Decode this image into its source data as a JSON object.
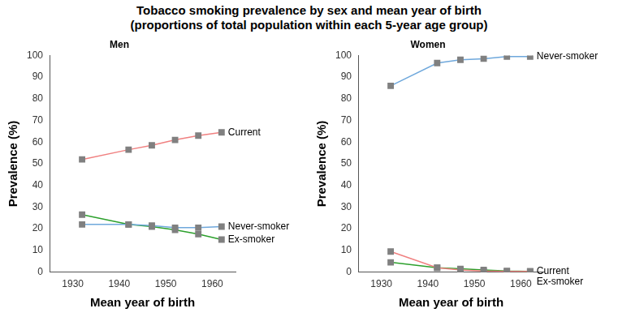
{
  "title": "Tobacco smoking prevalence by sex and mean year of birth",
  "subtitle": "(proportions of total population within each 5-year age group)",
  "chart_data": [
    {
      "type": "line",
      "title": "Men",
      "x_label": "Mean year of birth",
      "y_label": "Prevalence (%)",
      "x": [
        1932,
        1942,
        1947,
        1952,
        1957,
        1962
      ],
      "xlim": [
        1925,
        1965
      ],
      "xticks": [
        1930,
        1940,
        1950,
        1960
      ],
      "ylim": [
        0,
        100
      ],
      "yticks": [
        0,
        10,
        20,
        30,
        40,
        50,
        60,
        70,
        80,
        90,
        100
      ],
      "grid": false,
      "series": [
        {
          "name": "Current",
          "color": "#f08080",
          "marker": "square",
          "values": [
            52,
            56.5,
            58.5,
            61,
            63,
            64.5
          ]
        },
        {
          "name": "Never-smoker",
          "color": "#6fa8dc",
          "marker": "square",
          "values": [
            22,
            22,
            21.5,
            20.5,
            20.5,
            21
          ]
        },
        {
          "name": "Ex-smoker",
          "color": "#2ca02c",
          "marker": "square",
          "values": [
            26.5,
            22,
            21,
            19.5,
            17.5,
            15
          ]
        }
      ]
    },
    {
      "type": "line",
      "title": "Women",
      "x_label": "Mean year of birth",
      "y_label": "Prevalence (%)",
      "x": [
        1932,
        1942,
        1947,
        1952,
        1957,
        1962
      ],
      "xlim": [
        1925,
        1965
      ],
      "xticks": [
        1930,
        1940,
        1950,
        1960
      ],
      "ylim": [
        0,
        100
      ],
      "yticks": [
        0,
        10,
        20,
        30,
        40,
        50,
        60,
        70,
        80,
        90,
        100
      ],
      "grid": false,
      "series": [
        {
          "name": "Never-smoker",
          "color": "#6fa8dc",
          "marker": "square",
          "values": [
            86,
            96.5,
            98,
            98.5,
            99.5,
            99.5
          ]
        },
        {
          "name": "Current",
          "color": "#f08080",
          "marker": "square",
          "values": [
            9.5,
            2,
            1,
            0.5,
            0.3,
            0.3
          ]
        },
        {
          "name": "Ex-smoker",
          "color": "#2ca02c",
          "marker": "square",
          "values": [
            4.5,
            2,
            1.5,
            1,
            0.5,
            0.3
          ]
        }
      ]
    }
  ]
}
